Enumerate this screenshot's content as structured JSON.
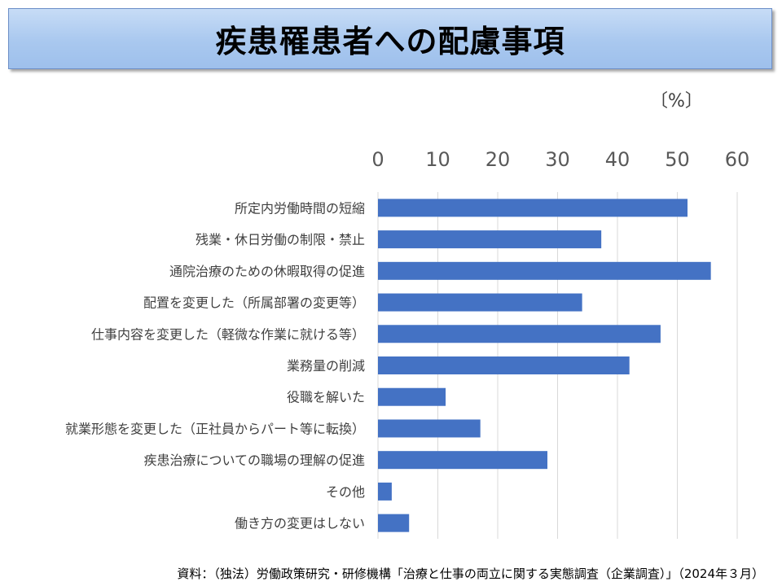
{
  "title": "疾患罹患者への配慮事項",
  "unit": "〔%〕",
  "source": "資料：（独法）労働政策研究・研修機構「治療と仕事の両立に関する実態調査（企業調査）」（2024年３月）",
  "chart_data": {
    "type": "bar",
    "orientation": "horizontal",
    "categories": [
      "所定内労働時間の短縮",
      "残業・休日労働の制限・禁止",
      "通院治療のための休暇取得の促進",
      "配置を変更した（所属部署の変更等）",
      "仕事内容を変更した（軽微な作業に就ける等）",
      "業務量の削減",
      "役職を解いた",
      "就業形態を変更した（正社員からパート等に転換）",
      "疾患治療についての職場の理解の促進",
      "その他",
      "働き方の変更はしない"
    ],
    "values": [
      51.7,
      37.3,
      55.6,
      34.1,
      47.2,
      42.0,
      11.3,
      17.1,
      28.3,
      2.3,
      5.2
    ],
    "xlim": [
      0,
      60
    ],
    "xticks": [
      0,
      10,
      20,
      30,
      40,
      50,
      60
    ],
    "xaxis_position": "top",
    "grid": true,
    "bar_color": "#4472c4",
    "grid_color": "#d9d9d9"
  }
}
